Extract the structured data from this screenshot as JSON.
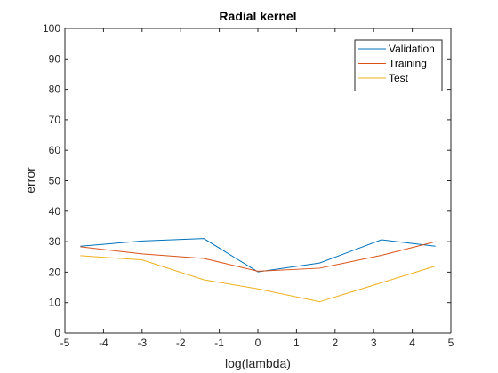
{
  "chart_data": {
    "type": "line",
    "title": "Radial kernel",
    "xlabel": "log(lambda)",
    "ylabel": "error",
    "xlim": [
      -5,
      5
    ],
    "ylim": [
      0,
      100
    ],
    "xticks": [
      -5,
      -4,
      -3,
      -2,
      -1,
      0,
      1,
      2,
      3,
      4,
      5
    ],
    "yticks": [
      0,
      10,
      20,
      30,
      40,
      50,
      60,
      70,
      80,
      90,
      100
    ],
    "grid": false,
    "legend_position": "top-right",
    "x": [
      -4.6,
      -3.0,
      -1.4,
      0.0,
      1.6,
      3.2,
      4.6
    ],
    "series": [
      {
        "name": "Validation",
        "color": "#0072BD",
        "values": [
          28.5,
          30.2,
          31.0,
          20.1,
          23.0,
          30.6,
          28.5
        ]
      },
      {
        "name": "Training",
        "color": "#D95319",
        "values": [
          28.3,
          26.0,
          24.5,
          20.3,
          21.3,
          25.5,
          30.0
        ]
      },
      {
        "name": "Test",
        "color": "#EDB120",
        "values": [
          25.4,
          24.0,
          17.5,
          14.5,
          10.3,
          16.5,
          22.0
        ]
      }
    ]
  }
}
